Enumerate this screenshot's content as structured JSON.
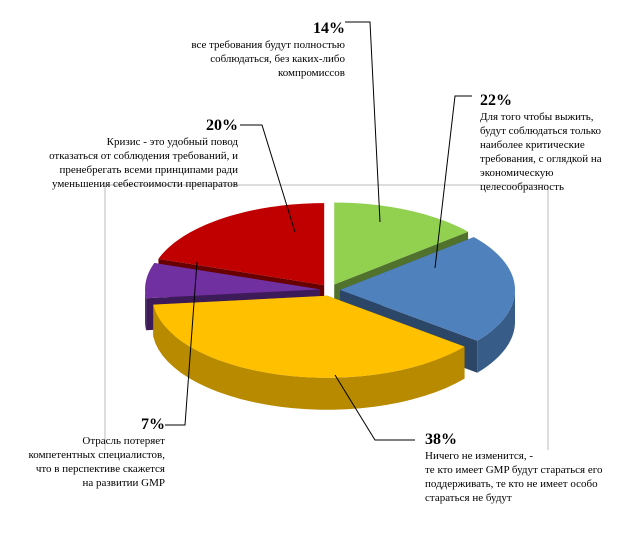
{
  "chart_data": {
    "type": "pie3d",
    "categories": [
      "все требования будут полностью\nсоблюдаться, без каких-либо\nкомпромиссов",
      "Для того чтобы выжить,\nбудут соблюдаться только\nнаиболее критические\nтребования, с оглядкой на\nэкономическую\nцелесообразность",
      "Ничего не изменится, -\nте кто имеет GMP будут стараться его\nподдерживать, те кто не имеет особо\nстараться не будут",
      "Отрасль потеряет\nкомпетентных специалистов,\nчто в перспективе скажется\nна развитии GMP",
      "Кризис - это удобный повод\nотказаться от соблюдения требований, и\nпренебрегать всеми принципами ради\nуменьшения себестоимости препаратов"
    ],
    "values": [
      14,
      22,
      38,
      7,
      20
    ],
    "value_labels": [
      "14%",
      "22%",
      "38%",
      "7%",
      "20%"
    ],
    "colors": [
      "#92d050",
      "#4f81bd",
      "#ffc000",
      "#7030a0",
      "#c00000"
    ]
  }
}
